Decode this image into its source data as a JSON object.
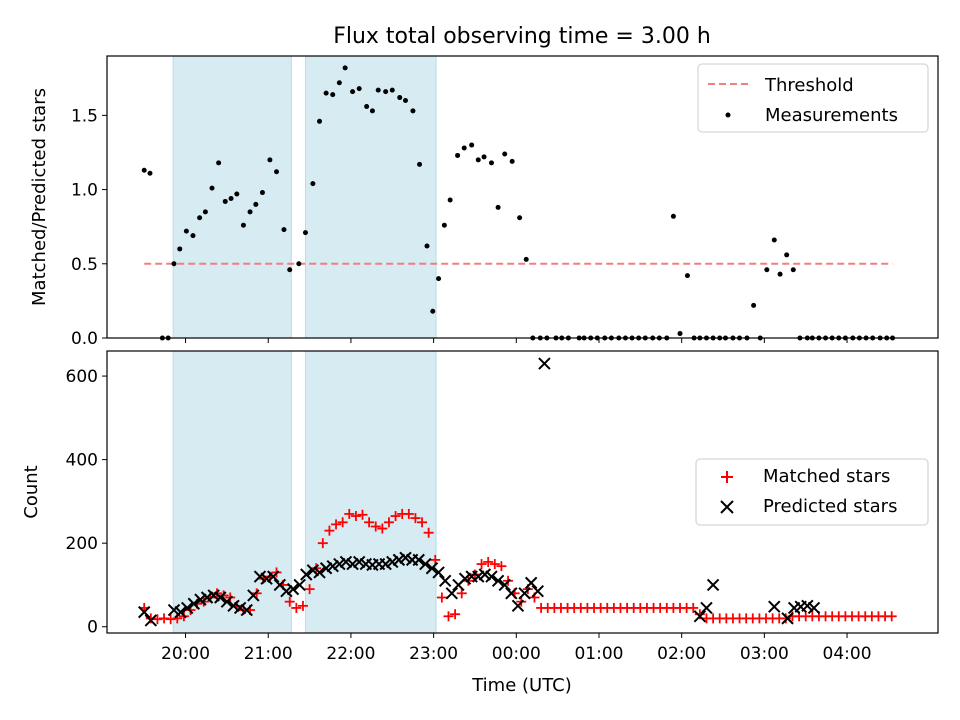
{
  "chart_data": [
    {
      "type": "scatter",
      "title": "Flux total observing time = 3.00 h",
      "xlabel": "",
      "ylabel": "Matched/Predicted stars",
      "xlim": [
        19.05,
        5.1
      ],
      "ylim": [
        0,
        1.9
      ],
      "x_ticks": [
        20,
        21,
        22,
        23,
        24,
        25,
        26,
        27,
        28
      ],
      "x_tick_labels": [
        "",
        "",
        "",
        "",
        "",
        "",
        "",
        "",
        ""
      ],
      "y_ticks": [
        0.0,
        0.5,
        1.0,
        1.5
      ],
      "y_tick_labels": [
        "0.0",
        "0.5",
        "1.0",
        "1.5"
      ],
      "shaded_spans": [
        [
          19.85,
          21.28
        ],
        [
          21.45,
          23.03
        ]
      ],
      "threshold": {
        "name": "Threshold",
        "value": 0.5,
        "x_range": [
          19.5,
          28.55
        ],
        "color": "#f08080"
      },
      "legend_location": "upper-right",
      "series": [
        {
          "name": "Measurements",
          "marker": "dot",
          "color": "#000000",
          "x": [
            19.5,
            19.57,
            19.72,
            19.79,
            19.86,
            19.93,
            20.01,
            20.09,
            20.17,
            20.24,
            20.32,
            20.4,
            20.48,
            20.55,
            20.62,
            20.7,
            20.78,
            20.85,
            20.93,
            21.02,
            21.1,
            21.19,
            21.26,
            21.37,
            21.45,
            21.54,
            21.62,
            21.7,
            21.78,
            21.86,
            21.93,
            22.02,
            22.1,
            22.19,
            22.26,
            22.33,
            22.42,
            22.5,
            22.59,
            22.66,
            22.75,
            22.83,
            22.92,
            22.99,
            23.06,
            23.13,
            23.2,
            23.29,
            23.37,
            23.46,
            23.54,
            23.61,
            23.7,
            23.78,
            23.86,
            23.95,
            24.04,
            24.12,
            24.2,
            24.29,
            24.37,
            24.48,
            24.55,
            24.63,
            24.76,
            24.82,
            24.9,
            24.98,
            25.07,
            25.15,
            25.24,
            25.32,
            25.4,
            25.48,
            25.56,
            25.65,
            25.73,
            25.82,
            25.9,
            25.98,
            26.07,
            26.15,
            26.22,
            26.3,
            26.38,
            26.46,
            26.53,
            26.62,
            26.7,
            26.79,
            26.87,
            26.95,
            27.03,
            27.12,
            27.19,
            27.27,
            27.35,
            27.43,
            27.52,
            27.58,
            27.66,
            27.74,
            27.82,
            27.9,
            27.98,
            28.07,
            28.15,
            28.23,
            28.31,
            28.4,
            28.48,
            28.55
          ],
          "y": [
            1.13,
            1.11,
            0.0,
            0.0,
            0.5,
            0.6,
            0.72,
            0.69,
            0.81,
            0.85,
            1.01,
            1.18,
            0.92,
            0.94,
            0.97,
            0.76,
            0.85,
            0.9,
            0.98,
            1.2,
            1.12,
            0.73,
            0.46,
            0.5,
            0.71,
            1.04,
            1.46,
            1.65,
            1.64,
            1.72,
            1.82,
            1.66,
            1.68,
            1.56,
            1.53,
            1.67,
            1.66,
            1.67,
            1.62,
            1.6,
            1.53,
            1.17,
            0.62,
            0.18,
            0.4,
            0.76,
            0.93,
            1.23,
            1.28,
            1.3,
            1.2,
            1.22,
            1.18,
            0.88,
            1.24,
            1.19,
            0.81,
            0.53,
            0.0,
            0.0,
            0.0,
            0.0,
            0.0,
            0.0,
            0.0,
            0.0,
            0.0,
            0.0,
            0.0,
            0.0,
            0.0,
            0.0,
            0.0,
            0.0,
            0.0,
            0.0,
            0.0,
            0.0,
            0.82,
            0.03,
            0.42,
            0.0,
            0.0,
            0.0,
            0.0,
            0.0,
            0.0,
            0.0,
            0.0,
            0.0,
            0.22,
            0.0,
            0.46,
            0.66,
            0.43,
            0.56,
            0.46,
            0.0,
            0.0,
            0.0,
            0.0,
            0.0,
            0.0,
            0.0,
            0.0,
            0.0,
            0.0,
            0.0,
            0.0,
            0.0,
            0.0,
            0.0
          ]
        }
      ]
    },
    {
      "type": "scatter",
      "title": "",
      "xlabel": "Time (UTC)",
      "ylabel": "Count",
      "xlim": [
        19.05,
        5.1
      ],
      "ylim": [
        -15,
        660
      ],
      "x_ticks": [
        20,
        21,
        22,
        23,
        24,
        25,
        26,
        27,
        28
      ],
      "x_tick_labels": [
        "20:00",
        "21:00",
        "22:00",
        "23:00",
        "00:00",
        "01:00",
        "02:00",
        "03:00",
        "04:00"
      ],
      "y_ticks": [
        0,
        200,
        400,
        600
      ],
      "y_tick_labels": [
        "0",
        "200",
        "400",
        "600"
      ],
      "shaded_spans": [
        [
          19.85,
          21.28
        ],
        [
          21.45,
          23.03
        ]
      ],
      "legend_location": "center-right",
      "series": [
        {
          "name": "Matched stars",
          "marker": "plus",
          "color": "#ff0000",
          "x": [
            19.5,
            19.58,
            19.66,
            19.74,
            19.82,
            19.9,
            19.98,
            20.06,
            20.14,
            20.22,
            20.3,
            20.38,
            20.46,
            20.54,
            20.62,
            20.7,
            20.78,
            20.86,
            20.94,
            21.02,
            21.1,
            21.18,
            21.26,
            21.34,
            21.42,
            21.5,
            21.58,
            21.66,
            21.74,
            21.82,
            21.9,
            21.98,
            22.06,
            22.14,
            22.22,
            22.3,
            22.38,
            22.46,
            22.54,
            22.62,
            22.7,
            22.78,
            22.86,
            22.94,
            23.02,
            23.1,
            23.18,
            23.26,
            23.34,
            23.42,
            23.5,
            23.58,
            23.66,
            23.74,
            23.82,
            23.9,
            23.98,
            24.06,
            24.14,
            24.22,
            24.3,
            24.38,
            24.46,
            24.54,
            24.62,
            24.7,
            24.78,
            24.86,
            24.94,
            25.02,
            25.1,
            25.18,
            25.26,
            25.34,
            25.42,
            25.5,
            25.58,
            25.66,
            25.74,
            25.82,
            25.9,
            25.98,
            26.06,
            26.14,
            26.22,
            26.3,
            26.38,
            26.46,
            26.54,
            26.62,
            26.7,
            26.78,
            26.86,
            26.94,
            27.02,
            27.1,
            27.18,
            27.26,
            27.34,
            27.42,
            27.5,
            27.58,
            27.66,
            27.74,
            27.82,
            27.9,
            27.98,
            28.06,
            28.14,
            28.22,
            28.3,
            28.38,
            28.46,
            28.54
          ],
          "y": [
            45,
            20,
            18,
            20,
            18,
            20,
            25,
            40,
            55,
            60,
            70,
            80,
            75,
            70,
            50,
            40,
            40,
            80,
            115,
            120,
            130,
            100,
            60,
            45,
            50,
            90,
            140,
            200,
            230,
            245,
            250,
            270,
            265,
            268,
            250,
            240,
            235,
            250,
            265,
            270,
            270,
            260,
            250,
            225,
            160,
            70,
            25,
            30,
            80,
            110,
            125,
            150,
            155,
            150,
            145,
            110,
            80,
            60,
            90,
            70,
            45,
            45,
            45,
            45,
            45,
            45,
            45,
            45,
            45,
            45,
            45,
            45,
            45,
            45,
            45,
            45,
            45,
            45,
            45,
            45,
            45,
            45,
            45,
            45,
            30,
            20,
            20,
            20,
            20,
            20,
            20,
            20,
            20,
            20,
            20,
            20,
            20,
            20,
            25,
            25,
            25,
            25,
            25,
            25,
            25,
            25,
            25,
            25,
            25,
            25,
            25,
            25,
            25,
            25
          ]
        },
        {
          "name": "Predicted stars",
          "marker": "x",
          "color": "#000000",
          "x": [
            19.5,
            19.58,
            19.86,
            19.94,
            20.02,
            20.1,
            20.18,
            20.26,
            20.34,
            20.42,
            20.5,
            20.58,
            20.66,
            20.74,
            20.82,
            20.9,
            20.98,
            21.06,
            21.14,
            21.22,
            21.3,
            21.38,
            21.46,
            21.54,
            21.62,
            21.7,
            21.78,
            21.86,
            21.94,
            22.02,
            22.1,
            22.18,
            22.26,
            22.34,
            22.42,
            22.5,
            22.58,
            22.66,
            22.74,
            22.82,
            22.9,
            22.98,
            23.06,
            23.14,
            23.22,
            23.3,
            23.38,
            23.46,
            23.54,
            23.62,
            23.7,
            23.78,
            23.86,
            23.94,
            24.02,
            24.1,
            24.18,
            24.26,
            24.34,
            26.22,
            26.3,
            26.38,
            27.12,
            27.28,
            27.36,
            27.44,
            27.52,
            27.6
          ],
          "y": [
            35,
            15,
            40,
            35,
            45,
            55,
            65,
            70,
            75,
            70,
            60,
            50,
            45,
            40,
            75,
            120,
            115,
            120,
            100,
            85,
            90,
            100,
            125,
            135,
            130,
            140,
            145,
            150,
            155,
            150,
            155,
            150,
            148,
            150,
            150,
            155,
            160,
            165,
            160,
            160,
            150,
            140,
            130,
            110,
            80,
            100,
            115,
            120,
            120,
            125,
            120,
            110,
            100,
            80,
            50,
            80,
            105,
            85,
            630,
            25,
            45,
            100,
            48,
            20,
            45,
            48,
            50,
            45
          ]
        }
      ]
    }
  ]
}
